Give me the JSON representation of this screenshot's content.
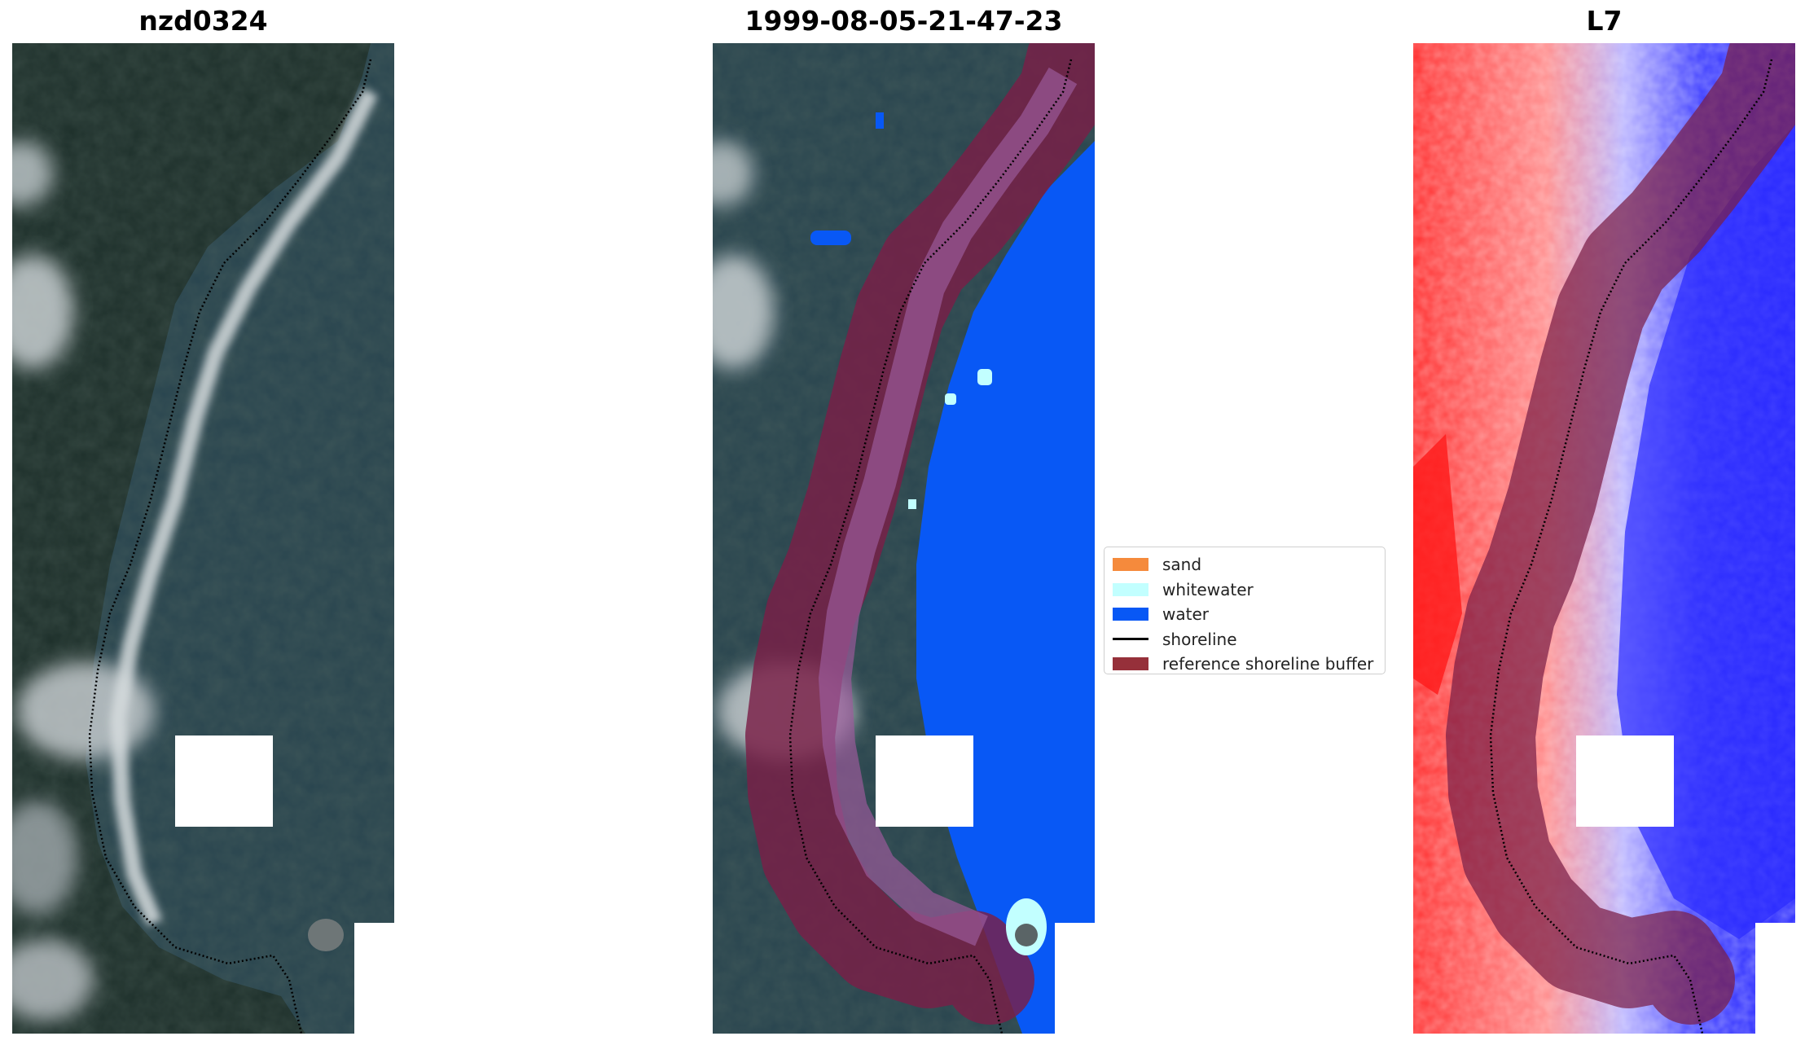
{
  "panels": [
    {
      "title": "nzd0324"
    },
    {
      "title": "1999-08-05-21-47-23"
    },
    {
      "title": "L7"
    }
  ],
  "legend": {
    "items": [
      {
        "label": "sand",
        "color": "#f58a3c",
        "kind": "patch"
      },
      {
        "label": "whitewater",
        "color": "#c2ffff",
        "kind": "patch"
      },
      {
        "label": "water",
        "color": "#0858f5",
        "kind": "patch"
      },
      {
        "label": "shoreline",
        "color": "#000000",
        "kind": "line"
      },
      {
        "label": "reference shoreline buffer",
        "color": "#96303a",
        "kind": "patch"
      }
    ]
  },
  "colors": {
    "ocean": "#27444f",
    "land": "#1f302b",
    "cloud": "#b9c0c3",
    "buffer": "#7a1f47",
    "water_class": "#0858f5",
    "index_positive": "#ff3030",
    "index_negative": "#2020ff"
  }
}
